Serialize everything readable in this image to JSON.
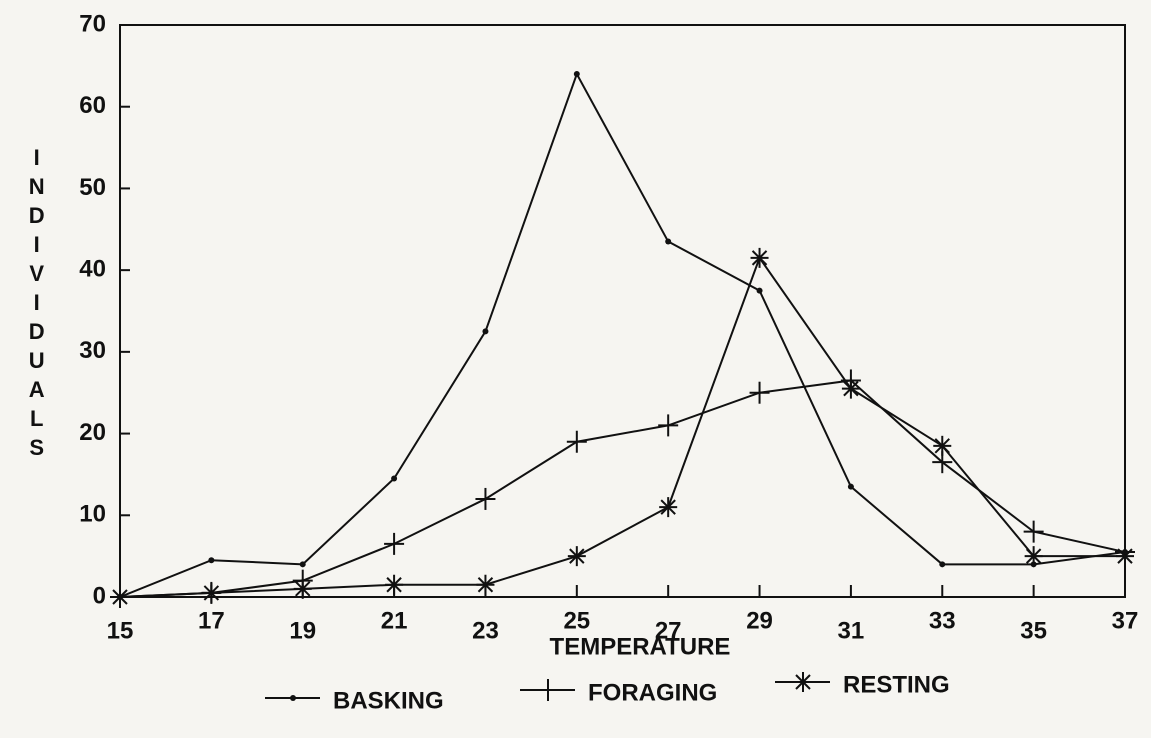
{
  "chart_data": {
    "type": "line",
    "x_label": "TEMPERATURE",
    "y_label": "INDIVIDUALS",
    "x": [
      15,
      17,
      19,
      21,
      23,
      25,
      27,
      29,
      31,
      33,
      35,
      37
    ],
    "series": [
      {
        "name": "BASKING",
        "color": "#111111",
        "marker": "dot",
        "values": [
          0,
          4.5,
          4,
          14.5,
          32.5,
          64,
          43.5,
          37.5,
          13.5,
          4,
          4,
          5.5
        ]
      },
      {
        "name": "FORAGING",
        "color": "#111111",
        "marker": "plus",
        "values": [
          0,
          0.5,
          2,
          6.5,
          12,
          19,
          21,
          25,
          26.5,
          16.5,
          8,
          5.5
        ]
      },
      {
        "name": "RESTING",
        "color": "#111111",
        "marker": "asterisk",
        "values": [
          0,
          0.5,
          1,
          1.5,
          1.5,
          5,
          11,
          41.5,
          25.5,
          18.5,
          5,
          5
        ]
      }
    ],
    "xlim": [
      15,
      37
    ],
    "xticks": [
      15,
      17,
      19,
      21,
      23,
      25,
      27,
      29,
      31,
      33,
      35,
      37
    ],
    "ylim": [
      0,
      70
    ],
    "yticks": [
      0,
      10,
      20,
      30,
      40,
      50,
      60,
      70
    ],
    "grid": false,
    "legend": "bottom"
  }
}
